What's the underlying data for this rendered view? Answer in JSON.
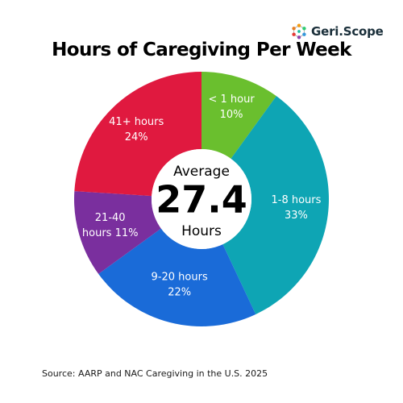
{
  "logo": {
    "text_main": "Geri",
    "text_suffix": "Scope",
    "icon": "molecule-icon",
    "colors": [
      "#e53935",
      "#8e44ad",
      "#3498db",
      "#2ecc71",
      "#f39c12"
    ]
  },
  "chart_data": {
    "type": "pie",
    "title": "Hours of Caregiving Per Week",
    "center": {
      "line1": "Average",
      "value": "27.4",
      "line3": "Hours"
    },
    "slices": [
      {
        "label_lines": [
          "< 1 hour"
        ],
        "pct_label": "10%",
        "value": 10,
        "color": "#6abf2e"
      },
      {
        "label_lines": [
          "1-8 hours"
        ],
        "pct_label": "33%",
        "value": 33,
        "color": "#0ea5b4"
      },
      {
        "label_lines": [
          "9-20 hours"
        ],
        "pct_label": "22%",
        "value": 22,
        "color": "#1a6bd8"
      },
      {
        "label_lines": [
          "21-40",
          "hours 11%"
        ],
        "pct_label": "",
        "value": 11,
        "color": "#7a2f9e"
      },
      {
        "label_lines": [
          "41+ hours"
        ],
        "pct_label": "24%",
        "value": 24,
        "color": "#e0193f"
      }
    ]
  },
  "source": "Source: AARP and NAC Caregiving in the U.S. 2025"
}
